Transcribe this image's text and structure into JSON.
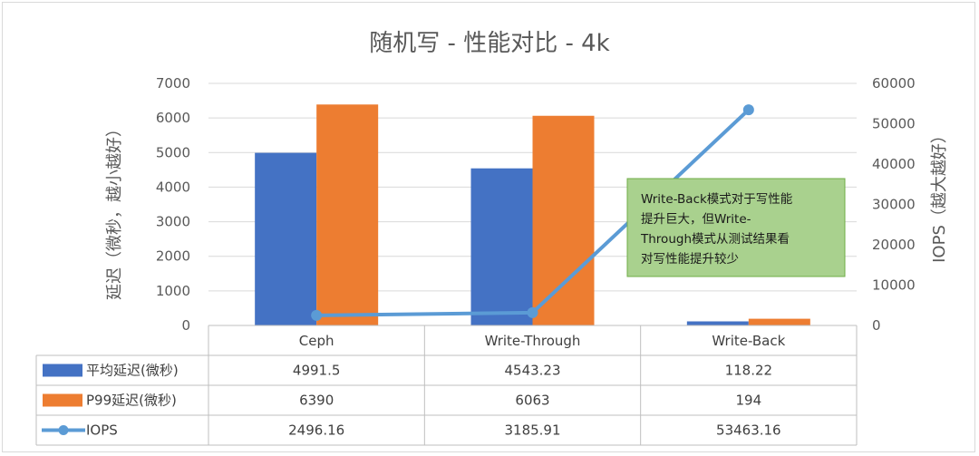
{
  "chart_data": {
    "type": "bar",
    "title": "随机写 - 性能对比 - 4k",
    "categories": [
      "Ceph",
      "Write-Through",
      "Write-Back"
    ],
    "ylabel": "延迟（微秒，越小越好）",
    "y2label": "IOPS（越大越好）",
    "ylim": [
      0,
      7000
    ],
    "y2lim": [
      0,
      60000
    ],
    "yticks": [
      0,
      1000,
      2000,
      3000,
      4000,
      5000,
      6000,
      7000
    ],
    "y2ticks": [
      0,
      10000,
      20000,
      30000,
      40000,
      50000,
      60000
    ],
    "series": [
      {
        "name": "平均延迟(微秒)",
        "type": "bar",
        "axis": "left",
        "color": "#4472C4",
        "values": [
          4991.5,
          4543.23,
          118.22
        ],
        "labels": [
          "4991.5",
          "4543.23",
          "118.22"
        ]
      },
      {
        "name": "P99延迟(微秒)",
        "type": "bar",
        "axis": "left",
        "color": "#ED7D31",
        "values": [
          6390,
          6063,
          194
        ],
        "labels": [
          "6390",
          "6063",
          "194"
        ]
      },
      {
        "name": "IOPS",
        "type": "line",
        "axis": "right",
        "color": "#5B9BD5",
        "values": [
          2496.16,
          3185.91,
          53463.16
        ],
        "labels": [
          "2496.16",
          "3185.91",
          "53463.16"
        ]
      }
    ],
    "annotation": {
      "lines": [
        "Write-Back模式对于写性能",
        "提升巨大，但Write-",
        "Through模式从测试结果看",
        "对写性能提升较少"
      ],
      "fill": "#A9D18E",
      "border": "#70AD47"
    },
    "grid": true,
    "data_table": true
  }
}
